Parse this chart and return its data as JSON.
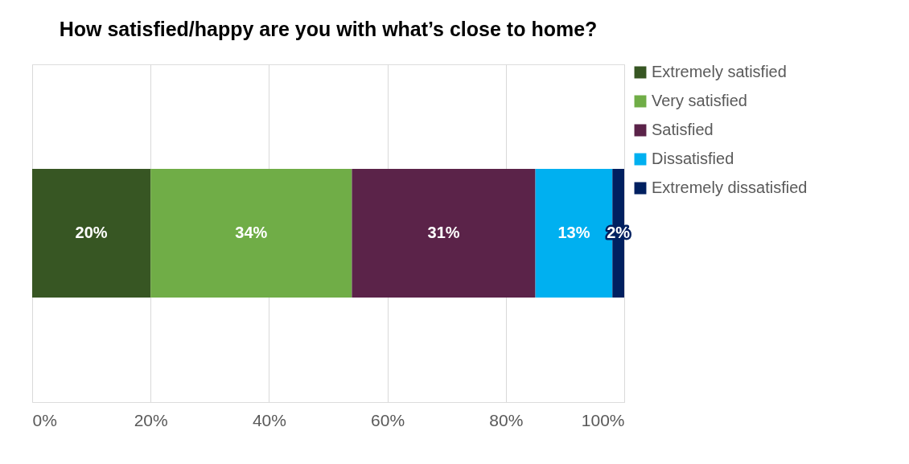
{
  "chart_data": {
    "type": "bar",
    "orientation": "horizontal",
    "stacked": true,
    "title": "How satisfied/happy are you with what’s close to home?",
    "categories": [
      null
    ],
    "series": [
      {
        "name": "Extremely satisfied",
        "color": "#375623",
        "values": [
          20
        ],
        "value_labels": [
          "20%"
        ]
      },
      {
        "name": "Very satisfied",
        "color": "#70ad47",
        "values": [
          34
        ],
        "value_labels": [
          "34%"
        ]
      },
      {
        "name": "Satisfied",
        "color": "#5b2349",
        "values": [
          31
        ],
        "value_labels": [
          "31%"
        ]
      },
      {
        "name": "Dissatisfied",
        "color": "#00b0f0",
        "values": [
          13
        ],
        "value_labels": [
          "13%"
        ]
      },
      {
        "name": "Extremely dissatisfied",
        "color": "#002060",
        "values": [
          2
        ],
        "value_labels": [
          "2%"
        ]
      }
    ],
    "xlim": [
      0,
      100
    ],
    "xticks": [
      {
        "value": 0,
        "label": "0%"
      },
      {
        "value": 20,
        "label": "20%"
      },
      {
        "value": 40,
        "label": "40%"
      },
      {
        "value": 60,
        "label": "60%"
      },
      {
        "value": 80,
        "label": "80%"
      },
      {
        "value": 100,
        "label": "100%"
      }
    ],
    "grid": "x",
    "legend": "right"
  }
}
